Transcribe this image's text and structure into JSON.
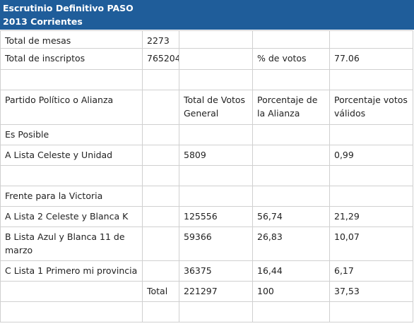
{
  "header": {
    "line1": "Escrutinio Definitivo PASO",
    "line2": "2013 Corrientes"
  },
  "summary": {
    "mesas_label": "Total de mesas",
    "mesas_value": "2273",
    "inscriptos_label": "Total de inscriptos",
    "inscriptos_value": "765204",
    "votos_label": "% de votos",
    "votos_value": "77.06"
  },
  "columns": {
    "partido": "Partido Político o Alianza",
    "total_votos": "Total de Votos General",
    "porc_alianza": "Porcentaje de la Alianza",
    "porc_validos": "Porcentaje votos válidos"
  },
  "groups": [
    {
      "name": "Es Posible",
      "lists": [
        {
          "name": "A Lista Celeste y Unidad",
          "votos": "5809",
          "alianza": "",
          "validos": "0,99"
        }
      ]
    },
    {
      "name": "Frente para la Victoria",
      "lists": [
        {
          "name": "A Lista 2 Celeste y Blanca K",
          "votos": "125556",
          "alianza": "56,74",
          "validos": "21,29"
        },
        {
          "name": "B Lista Azul y Blanca 11 de marzo",
          "votos": "59366",
          "alianza": "26,83",
          "validos": "10,07"
        },
        {
          "name": "C Lista 1 Primero mi provincia",
          "votos": "36375",
          "alianza": "16,44",
          "validos": "6,17"
        }
      ]
    }
  ],
  "total": {
    "label": "Total",
    "votos": "221297",
    "alianza": "100",
    "validos": "37,53"
  }
}
